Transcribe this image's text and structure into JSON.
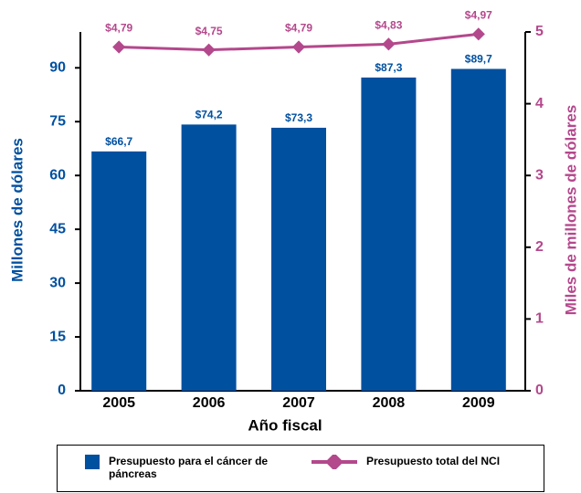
{
  "chart_data": {
    "type": "bar-line",
    "x_label": "Año fiscal",
    "y_label": "Millones de dólares",
    "y2_label": "Miles de millones de dólares",
    "categories": [
      "2005",
      "2006",
      "2007",
      "2008",
      "2009"
    ],
    "series": [
      {
        "name": "Presupuesto para el cáncer de páncreas",
        "type": "bar",
        "color": "#0050a0",
        "values": [
          66.7,
          74.2,
          73.3,
          87.3,
          89.7
        ],
        "value_labels": [
          "$66,7",
          "$74,2",
          "$73,3",
          "$87,3",
          "$89,7"
        ]
      },
      {
        "name": "Presupuesto total del NCI",
        "type": "line",
        "axis": "y2",
        "color": "#b4488c",
        "values": [
          4.79,
          4.75,
          4.79,
          4.83,
          4.97
        ],
        "value_labels": [
          "$4,79",
          "$4,75",
          "$4,79",
          "$4,83",
          "$4,97"
        ]
      }
    ],
    "ylim": [
      0,
      100
    ],
    "yticks": [
      0,
      15,
      30,
      45,
      60,
      75,
      90
    ],
    "y2lim": [
      0,
      5
    ],
    "y2ticks": [
      0,
      1,
      2,
      3,
      4,
      5
    ]
  }
}
